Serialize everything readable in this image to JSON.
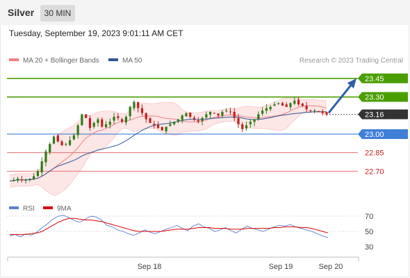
{
  "header": {
    "symbol": "Silver",
    "interval": "30 MIN",
    "timestamp": "Tuesday, September 19, 2023 9:01:11 AM CET"
  },
  "colors": {
    "resistance": "#4a9e00",
    "current": "#333333",
    "support": "#3f7fd8",
    "lower_level": "#e07070",
    "lower_text": "#c82020",
    "ma20": "#f08080",
    "ma50": "#2f5597",
    "band_fill": "#fde6e6",
    "rsi": "#5a7fd0",
    "rsi_ma": "#dd0000",
    "candle_up": "#2e7d16",
    "candle_down": "#c22020",
    "arrow": "#2f5fa8"
  },
  "chart_data": [
    {
      "type": "candlestick",
      "legend": [
        {
          "label": "MA 20 + Bollinger Bands",
          "color": "#f08080"
        },
        {
          "label": "MA 50",
          "color": "#2f5597"
        }
      ],
      "watermark": "Research © 2023 Trading Central",
      "ylim": [
        22.5,
        23.55
      ],
      "levels": [
        {
          "value": 23.45,
          "label": "23.45",
          "kind": "resistance"
        },
        {
          "value": 23.3,
          "label": "23.30",
          "kind": "resistance"
        },
        {
          "value": 23.16,
          "label": "23.16",
          "kind": "current"
        },
        {
          "value": 23.0,
          "label": "23.00",
          "kind": "support"
        },
        {
          "value": 22.85,
          "label": "22.85",
          "kind": "lower"
        },
        {
          "value": 22.7,
          "label": "22.70",
          "kind": "lower"
        }
      ],
      "x_ticks": [
        "Sep 18",
        "Sep 19",
        "Sep 20"
      ],
      "close_path": [
        22.62,
        22.63,
        22.64,
        22.63,
        22.63,
        22.64,
        22.66,
        22.7,
        22.78,
        22.86,
        22.92,
        22.98,
        22.94,
        22.91,
        22.92,
        22.95,
        22.99,
        23.07,
        23.16,
        23.13,
        23.05,
        23.09,
        23.12,
        23.06,
        23.08,
        23.1,
        23.14,
        23.13,
        23.1,
        23.14,
        23.22,
        23.26,
        23.21,
        23.17,
        23.12,
        23.09,
        23.07,
        23.05,
        23.03,
        23.06,
        23.08,
        23.1,
        23.12,
        23.15,
        23.17,
        23.14,
        23.12,
        23.1,
        23.13,
        23.16,
        23.18,
        23.17,
        23.15,
        23.18,
        23.19,
        23.18,
        23.13,
        23.08,
        23.04,
        23.07,
        23.1,
        23.12,
        23.16,
        23.19,
        23.21,
        23.22,
        23.24,
        23.25,
        23.23,
        23.22,
        23.25,
        23.27,
        23.24,
        23.23,
        23.2,
        23.19,
        23.19,
        23.18,
        23.17,
        23.16
      ]
    },
    {
      "type": "line",
      "legend": [
        {
          "label": "RSI",
          "color": "#5a7fd0"
        },
        {
          "label": "9MA",
          "color": "#dd0000"
        }
      ],
      "y_ticks": [
        70,
        50,
        30
      ],
      "ylim": [
        20,
        80
      ],
      "series": [
        {
          "name": "RSI",
          "values": [
            44,
            46,
            43,
            47,
            45,
            49,
            55,
            60,
            66,
            70,
            71,
            68,
            64,
            62,
            66,
            70,
            69,
            65,
            58,
            56,
            52,
            50,
            47,
            45,
            48,
            52,
            49,
            47,
            50,
            53,
            55,
            58,
            54,
            51,
            57,
            60,
            56,
            54,
            50,
            52,
            55,
            51,
            48,
            53,
            57,
            54,
            52,
            50,
            53,
            56,
            58,
            57,
            59,
            56,
            54,
            52,
            50,
            47,
            44,
            42
          ]
        },
        {
          "name": "9MA",
          "values": [
            46,
            46,
            46,
            46,
            47,
            48,
            50,
            54,
            58,
            62,
            65,
            67,
            67,
            66,
            65,
            65,
            64,
            63,
            61,
            59,
            57,
            55,
            53,
            51,
            50,
            50,
            50,
            50,
            50,
            51,
            52,
            53,
            53,
            53,
            54,
            55,
            55,
            55,
            54,
            54,
            54,
            53,
            53,
            53,
            54,
            54,
            54,
            54,
            54,
            55,
            55,
            56,
            56,
            56,
            55,
            55,
            54,
            52,
            50,
            48
          ]
        }
      ]
    }
  ]
}
